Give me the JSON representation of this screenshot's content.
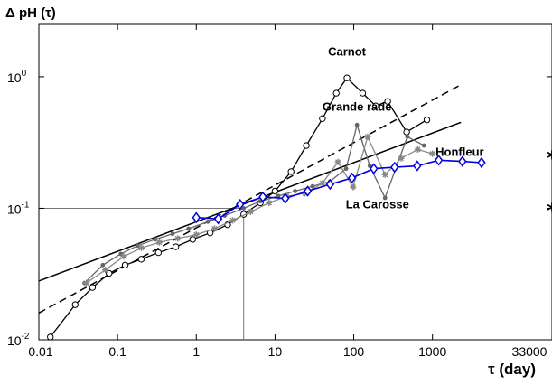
{
  "chart_data": {
    "type": "line",
    "xscale": "log",
    "yscale": "log",
    "xlim": [
      0.01,
      33000
    ],
    "ylim": [
      0.01,
      2.5
    ],
    "xlabel": "τ (day)",
    "ylabel": "Δ pH (τ)",
    "x_ticks": [
      {
        "value": 0.01,
        "label": "0.01"
      },
      {
        "value": 0.1,
        "label": "0.1"
      },
      {
        "value": 1,
        "label": "1"
      },
      {
        "value": 10,
        "label": "10"
      },
      {
        "value": 100,
        "label": "100"
      },
      {
        "value": 1000,
        "label": "1000"
      },
      {
        "value": 33000,
        "label": "33000"
      }
    ],
    "y_ticks": [
      {
        "value": 0.01,
        "base": "10",
        "exp": "-2"
      },
      {
        "value": 0.1,
        "base": "10",
        "exp": "-1"
      },
      {
        "value": 1,
        "base": "10",
        "exp": "0"
      }
    ],
    "series": [
      {
        "name": "Carnot",
        "color": "#000000",
        "marker": "circle",
        "points": [
          [
            0.014,
            0.0105
          ],
          [
            0.029,
            0.0185
          ],
          [
            0.048,
            0.025
          ],
          [
            0.078,
            0.032
          ],
          [
            0.125,
            0.037
          ],
          [
            0.2,
            0.041
          ],
          [
            0.33,
            0.046
          ],
          [
            0.55,
            0.051
          ],
          [
            0.9,
            0.058
          ],
          [
            1.5,
            0.065
          ],
          [
            2.5,
            0.075
          ],
          [
            4,
            0.09
          ],
          [
            6.5,
            0.11
          ],
          [
            10,
            0.135
          ],
          [
            16,
            0.19
          ],
          [
            25,
            0.3
          ],
          [
            40,
            0.48
          ],
          [
            60,
            0.75
          ],
          [
            82,
            0.98
          ],
          [
            130,
            0.75
          ],
          [
            190,
            0.6
          ],
          [
            270,
            0.65
          ],
          [
            470,
            0.38
          ],
          [
            850,
            0.47
          ]
        ]
      },
      {
        "name": "Grande rade",
        "color": "#666666",
        "marker": "dot",
        "points": [
          [
            0.038,
            0.027
          ],
          [
            0.065,
            0.037
          ],
          [
            0.11,
            0.045
          ],
          [
            0.18,
            0.052
          ],
          [
            0.3,
            0.058
          ],
          [
            0.5,
            0.064
          ],
          [
            0.8,
            0.07
          ],
          [
            1.4,
            0.079
          ],
          [
            2.3,
            0.088
          ],
          [
            4,
            0.1
          ],
          [
            6.5,
            0.113
          ],
          [
            11,
            0.124
          ],
          [
            18,
            0.135
          ],
          [
            30,
            0.147
          ],
          [
            50,
            0.16
          ],
          [
            80,
            0.2
          ],
          [
            110,
            0.43
          ],
          [
            160,
            0.21
          ],
          [
            250,
            0.12
          ],
          [
            480,
            0.35
          ],
          [
            780,
            0.3
          ]
        ]
      },
      {
        "name": "La Carosse",
        "color": "#888888",
        "marker": "asterisk",
        "points": [
          [
            0.04,
            0.027
          ],
          [
            0.07,
            0.034
          ],
          [
            0.12,
            0.043
          ],
          [
            0.2,
            0.05
          ],
          [
            0.34,
            0.055
          ],
          [
            0.58,
            0.059
          ],
          [
            1,
            0.063
          ],
          [
            1.7,
            0.07
          ],
          [
            2.9,
            0.081
          ],
          [
            4.9,
            0.094
          ],
          [
            8.4,
            0.11
          ],
          [
            14,
            0.123
          ],
          [
            24,
            0.13
          ],
          [
            40,
            0.155
          ],
          [
            63,
            0.225
          ],
          [
            98,
            0.145
          ],
          [
            150,
            0.35
          ],
          [
            250,
            0.18
          ],
          [
            400,
            0.24
          ],
          [
            650,
            0.28
          ],
          [
            1000,
            0.26
          ]
        ]
      },
      {
        "name": "Honfleur",
        "color": "#0000dd",
        "marker": "diamond",
        "points": [
          [
            1,
            0.085
          ],
          [
            1.9,
            0.083
          ],
          [
            3.6,
            0.107
          ],
          [
            7,
            0.122
          ],
          [
            13.5,
            0.119
          ],
          [
            26,
            0.135
          ],
          [
            50,
            0.152
          ],
          [
            95,
            0.17
          ],
          [
            180,
            0.2
          ],
          [
            330,
            0.205
          ],
          [
            640,
            0.21
          ],
          [
            1200,
            0.232
          ],
          [
            2400,
            0.227
          ],
          [
            4200,
            0.222
          ]
        ]
      }
    ],
    "fit_lines": [
      {
        "name": "fit-solid",
        "style": "solid",
        "color": "#000000",
        "points": [
          [
            0.01,
            0.028
          ],
          [
            2300,
            0.45
          ]
        ]
      },
      {
        "name": "fit-dashed",
        "style": "dashed",
        "color": "#000000",
        "points": [
          [
            0.01,
            0.016
          ],
          [
            2300,
            0.87
          ]
        ]
      }
    ],
    "reference_lines": {
      "color": "#777777",
      "points": [
        [
          0.01,
          0.1
        ],
        [
          4,
          0.1
        ],
        [
          4,
          0.01
        ]
      ]
    },
    "annotations": [
      {
        "text": "Carnot",
        "x": 82,
        "y": 1.45,
        "anchor": "middle"
      },
      {
        "text": "Grande rade",
        "x": 110,
        "y": 0.55,
        "anchor": "middle"
      },
      {
        "text": "Honfleur",
        "x": 4500,
        "y": 0.25,
        "anchor": "end"
      },
      {
        "text": "La Carosse",
        "x": 200,
        "y": 0.1,
        "anchor": "middle"
      }
    ],
    "star_markers": [
      {
        "text": "*",
        "x": 33000,
        "y": 0.25
      },
      {
        "text": "*",
        "x": 33000,
        "y": 0.1
      }
    ],
    "grid": false,
    "legend": "none"
  }
}
